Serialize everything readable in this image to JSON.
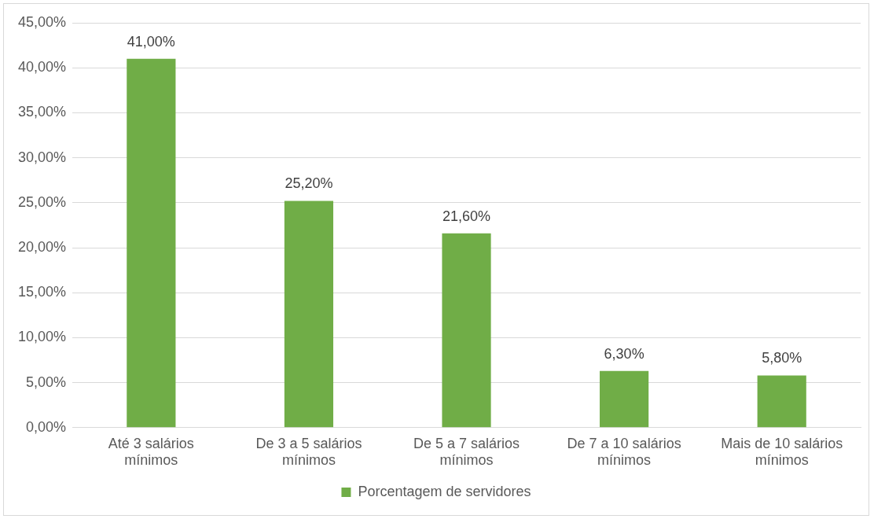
{
  "chart_data": {
    "type": "bar",
    "categories": [
      "Até 3 salários mínimos",
      "De 3 a 5 salários mínimos",
      "De 5 a 7 salários mínimos",
      "De 7 a 10 salários mínimos",
      "Mais de 10 salários mínimos"
    ],
    "series": [
      {
        "name": "Porcentagem de servidores",
        "color": "#70ad47",
        "values": [
          41,
          25.2,
          21.6,
          6.3,
          5.8
        ],
        "value_labels": [
          "41,00%",
          "25,20%",
          "21,60%",
          "6,30%",
          "5,80%"
        ]
      }
    ],
    "ylim": [
      0,
      45
    ],
    "yticks": [
      {
        "value": 0,
        "label": "0,00%"
      },
      {
        "value": 5,
        "label": "5,00%"
      },
      {
        "value": 10,
        "label": "10,00%"
      },
      {
        "value": 15,
        "label": "15,00%"
      },
      {
        "value": 20,
        "label": "20,00%"
      },
      {
        "value": 25,
        "label": "25,00%"
      },
      {
        "value": 30,
        "label": "30,00%"
      },
      {
        "value": 35,
        "label": "35,00%"
      },
      {
        "value": 40,
        "label": "40,00%"
      },
      {
        "value": 45,
        "label": "45,00%"
      }
    ],
    "grid": "y",
    "legend": "bottom"
  }
}
